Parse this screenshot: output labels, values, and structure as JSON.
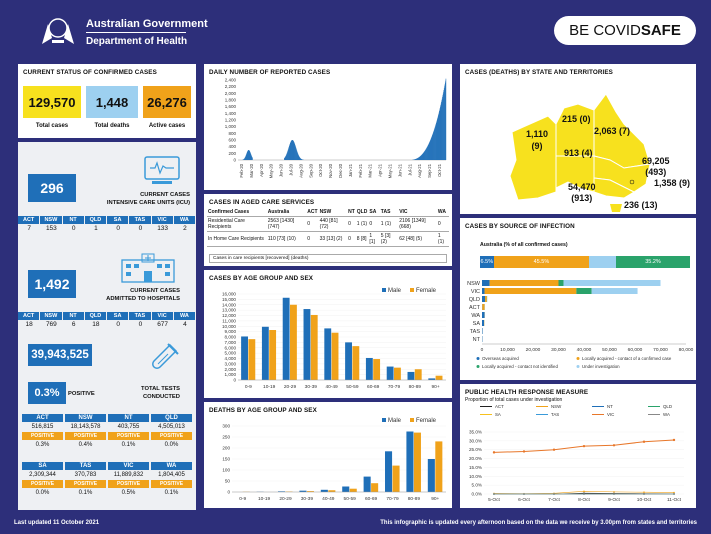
{
  "header": {
    "gov_line1": "Australian Government",
    "gov_line2": "Department of Health",
    "badge_pre": "BE COVID",
    "badge_bold": "SAFE"
  },
  "footer": {
    "updated": "Last updated 11 October 2021",
    "note": "This infographic is updated every afternoon based on the data we receive by 3.00pm from states and territories"
  },
  "colors": {
    "navy": "#2d2f7a",
    "blue": "#1f6fb8",
    "yellow": "#f7e11e",
    "orange": "#f0a21a",
    "lightblue": "#9dd0f0",
    "green": "#2aa36b"
  },
  "confirmed": {
    "title": "CURRENT STATUS OF CONFIRMED CASES",
    "total": "129,570",
    "total_lbl": "Total cases",
    "deaths": "1,448",
    "deaths_lbl": "Total deaths",
    "active": "26,276",
    "active_lbl": "Active cases"
  },
  "jur_headers": [
    "ACT",
    "NSW",
    "NT",
    "QLD",
    "SA",
    "TAS",
    "VIC",
    "WA"
  ],
  "icu": {
    "value": "296",
    "label1": "CURRENT CASES",
    "label2": "INTENSIVE CARE UNITS (ICU)",
    "values": [
      "7",
      "153",
      "0",
      "1",
      "0",
      "0",
      "133",
      "2"
    ]
  },
  "hosp": {
    "value": "1,492",
    "label1": "CURRENT CASES",
    "label2": "ADMITTED TO HOSPITALS",
    "values": [
      "18",
      "769",
      "6",
      "18",
      "0",
      "0",
      "677",
      "4"
    ]
  },
  "tests": {
    "value": "39,943,525",
    "positive": "0.3%",
    "positive_lbl": "POSITIVE",
    "label1": "TOTAL TESTS",
    "label2": "CONDUCTED",
    "pos_word": "POSITIVE",
    "rows": [
      [
        {
          "j": "ACT",
          "n": "516,815",
          "p": "0.3%"
        },
        {
          "j": "NSW",
          "n": "18,143,578",
          "p": "0.4%"
        },
        {
          "j": "NT",
          "n": "403,755",
          "p": "0.1%"
        },
        {
          "j": "QLD",
          "n": "4,505,013",
          "p": "0.0%"
        }
      ],
      [
        {
          "j": "SA",
          "n": "2,309,344",
          "p": "0.0%"
        },
        {
          "j": "TAS",
          "n": "370,783",
          "p": "0.1%"
        },
        {
          "j": "VIC",
          "n": "11,889,832",
          "p": "0.5%"
        },
        {
          "j": "WA",
          "n": "1,804,405",
          "p": "0.1%"
        }
      ]
    ]
  },
  "daily": {
    "title": "DAILY NUMBER OF REPORTED CASES",
    "yticks": [
      "2,400",
      "2,200",
      "2,000",
      "1,800",
      "1,600",
      "1,400",
      "1,200",
      "1,000",
      "800",
      "600",
      "400",
      "200",
      "0"
    ],
    "xticks": [
      "Feb-20",
      "Mar-20",
      "Apr-20",
      "May-20",
      "Jun-20",
      "Jul-20",
      "Aug-20",
      "Sep-20",
      "Oct-20",
      "Nov-20",
      "Dec-20",
      "Jan-21",
      "Feb-21",
      "Mar-21",
      "Apr-21",
      "May-21",
      "Jun-21",
      "Jul-21",
      "Aug-21",
      "Sep-21",
      "Oct-21"
    ]
  },
  "aged": {
    "title": "CASES IN AGED CARE SERVICES",
    "headers": [
      "Confirmed Cases",
      "Australia",
      "ACT",
      "NSW",
      "NT",
      "QLD",
      "SA",
      "TAS",
      "VIC",
      "WA"
    ],
    "rows": [
      [
        "Residential Care Recipients",
        "2563 [1430] (747)",
        "0",
        "440 [81] (72)",
        "0",
        "1 (1)",
        "0",
        "1 (1)",
        "2106 [1349] (668)",
        "0"
      ],
      [
        "In Home Care Recipients",
        "110 [73] (10)",
        "0",
        "33 [13] (2)",
        "0",
        "8 [8]",
        "1 [1]",
        "5 [3] (2)",
        "62 [48] (5)",
        "1 (1)"
      ]
    ],
    "note": "Cases in care recipients [recovered] (deaths)"
  },
  "age_cases": {
    "title": "CASES BY AGE GROUP AND SEX",
    "legend_male": "Male",
    "legend_female": "Female"
  },
  "age_deaths": {
    "title": "DEATHS BY AGE GROUP AND SEX",
    "legend_male": "Male",
    "legend_female": "Female"
  },
  "map": {
    "title": "CASES (DEATHS) BY STATE AND TERRITORIES",
    "labels": [
      {
        "t": "1,110",
        "t2": "(9)"
      },
      {
        "t": "215 (0)"
      },
      {
        "t": "2,063 (7)"
      },
      {
        "t": "913 (4)"
      },
      {
        "t": "69,205",
        "t2": "(493)"
      },
      {
        "t": "54,470",
        "t2": "(913)"
      },
      {
        "t": "1,358 (9)"
      },
      {
        "t": "236 (13)"
      }
    ]
  },
  "source": {
    "title": "CASES BY SOURCE OF INFECTION",
    "subtitle": "Australia (% of all confirmed cases)",
    "bar": [
      {
        "label": "6.5%",
        "value": 6.5,
        "color": "#1f6fb8"
      },
      {
        "label": "45.5%",
        "value": 45.5,
        "color": "#f0a21a"
      },
      {
        "label": "",
        "value": 12.8,
        "color": "#9dd0f0"
      },
      {
        "label": "35.2%",
        "value": 35.2,
        "color": "#2aa36b"
      }
    ],
    "states": [
      "NSW",
      "VIC",
      "QLD",
      "ACT",
      "WA",
      "SA",
      "TAS",
      "NT"
    ],
    "xticks": [
      "0",
      "10,000",
      "20,000",
      "30,000",
      "40,000",
      "50,000",
      "60,000",
      "70,000",
      "80,000"
    ],
    "legend": [
      "Overseas acquired",
      "Locally acquired - contact of a confirmed case",
      "Locally acquired - contact not identified",
      "Under investigation"
    ]
  },
  "php": {
    "title": "PUBLIC HEALTH RESPONSE MEASURE",
    "subtitle": "Proportion of total cases under investigation",
    "legend": [
      "ACT",
      "NSW",
      "NT",
      "QLD",
      "SA",
      "TAS",
      "VIC",
      "WA"
    ],
    "yticks": [
      "35.0%",
      "30.0%",
      "25.0%",
      "20.0%",
      "15.0%",
      "10.0%",
      "5.0%",
      "0.0%"
    ],
    "xticks": [
      "5-Oct",
      "6-Oct",
      "7-Oct",
      "8-Oct",
      "9-Oct",
      "10-Oct",
      "11-Oct"
    ]
  },
  "chart_data": [
    {
      "type": "bar",
      "title": "CASES BY AGE GROUP AND SEX",
      "categories": [
        "0-9",
        "10-19",
        "20-29",
        "30-39",
        "40-49",
        "50-59",
        "60-69",
        "70-79",
        "80-89",
        "90+"
      ],
      "series": [
        {
          "name": "Male",
          "values": [
            8100,
            9900,
            15300,
            13200,
            9600,
            7000,
            4100,
            2500,
            1500,
            300
          ]
        },
        {
          "name": "Female",
          "values": [
            7600,
            9300,
            14000,
            12100,
            8800,
            6300,
            3900,
            2300,
            2000,
            800
          ]
        }
      ],
      "ylim": [
        0,
        16000
      ],
      "yticks": [
        "16,000",
        "15,000",
        "14,000",
        "13,000",
        "12,000",
        "11,000",
        "10,000",
        "9,000",
        "8,000",
        "7,000",
        "6,000",
        "5,000",
        "4,000",
        "3,000",
        "2,000",
        "1,000",
        "0"
      ]
    },
    {
      "type": "bar",
      "title": "DEATHS BY AGE GROUP AND SEX",
      "categories": [
        "0-9",
        "10-19",
        "20-29",
        "30-39",
        "40-49",
        "50-59",
        "60-69",
        "70-79",
        "80-89",
        "90+"
      ],
      "series": [
        {
          "name": "Male",
          "values": [
            0,
            1,
            3,
            6,
            10,
            25,
            70,
            185,
            275,
            150
          ]
        },
        {
          "name": "Female",
          "values": [
            1,
            0,
            2,
            4,
            8,
            15,
            40,
            120,
            270,
            230
          ]
        }
      ],
      "ylim": [
        0,
        300
      ],
      "yticks": [
        "300",
        "250",
        "200",
        "150",
        "100",
        "50",
        "0"
      ]
    },
    {
      "type": "bar",
      "title": "CASES BY SOURCE OF INFECTION",
      "categories": [
        "NSW",
        "VIC",
        "QLD",
        "ACT",
        "WA",
        "SA",
        "TAS",
        "NT"
      ],
      "series": [
        {
          "name": "Overseas acquired",
          "values": [
            3000,
            1000,
            1200,
            100,
            1000,
            800,
            200,
            150
          ]
        },
        {
          "name": "Locally acquired - contact of a confirmed case",
          "values": [
            27000,
            36000,
            700,
            900,
            50,
            100,
            10,
            10
          ]
        },
        {
          "name": "Locally acquired - contact not identified",
          "values": [
            2000,
            6000,
            100,
            50,
            20,
            20,
            5,
            5
          ]
        },
        {
          "name": "Under investigation",
          "values": [
            38000,
            18000,
            50,
            50,
            10,
            10,
            5,
            5
          ]
        }
      ],
      "xlim": [
        0,
        80000
      ]
    },
    {
      "type": "line",
      "title": "PUBLIC HEALTH RESPONSE MEASURE",
      "x": [
        "5-Oct",
        "6-Oct",
        "7-Oct",
        "8-Oct",
        "9-Oct",
        "10-Oct",
        "11-Oct"
      ],
      "series": [
        {
          "name": "VIC",
          "values": [
            23.5,
            24,
            25,
            27,
            27.5,
            29.5,
            30.5
          ]
        },
        {
          "name": "NSW",
          "values": [
            0.3,
            0.2,
            0.4,
            1.5,
            1.2,
            1.0,
            0.8
          ]
        },
        {
          "name": "ACT",
          "values": [
            0,
            0,
            0,
            0.5,
            0.3,
            0.2,
            0.1
          ]
        },
        {
          "name": "QLD",
          "values": [
            0,
            0,
            0,
            0,
            0,
            0,
            0
          ]
        },
        {
          "name": "NT",
          "values": [
            0,
            0,
            0,
            0,
            0,
            0,
            0
          ]
        },
        {
          "name": "SA",
          "values": [
            0,
            0,
            0,
            0,
            0,
            0,
            0
          ]
        },
        {
          "name": "TAS",
          "values": [
            0,
            0,
            0,
            0,
            0,
            0,
            0
          ]
        },
        {
          "name": "WA",
          "values": [
            0,
            0,
            0,
            0,
            0,
            0,
            0
          ]
        }
      ],
      "ylim": [
        0,
        35
      ]
    }
  ]
}
